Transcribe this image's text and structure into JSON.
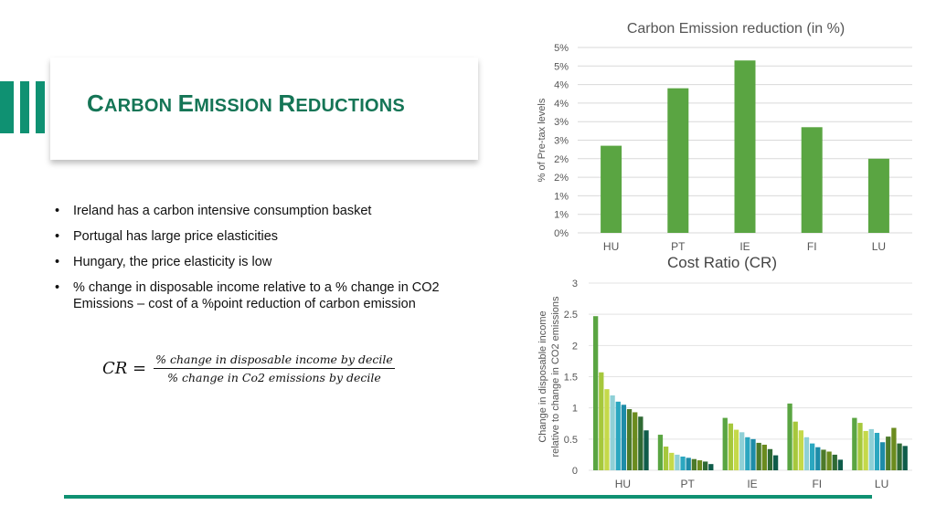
{
  "slide": {
    "title": "Carbon Emission Reductions",
    "bullets": [
      "Ireland has a carbon intensive consumption basket",
      "Portugal has large price elasticities",
      "Hungary, the price elasticity is low",
      "% change in disposable income relative to a % change in CO2 Emissions – cost of a %point reduction of carbon emission"
    ],
    "formula": {
      "lhs": "CR =",
      "numerator": "% change in disposable income by decile",
      "denominator": "% change in Co2 emissions by decile"
    }
  },
  "colors": {
    "accent": "#0f9172",
    "title": "#157556",
    "bar_top": "#5aa542",
    "decile_palette": [
      "#5aa542",
      "#a6c83c",
      "#c5d94a",
      "#8fd0d6",
      "#2ba7c0",
      "#1e8ca8",
      "#4d7a2a",
      "#6b8b1e",
      "#2f6a34",
      "#0f5c4a"
    ]
  },
  "chart_data": [
    {
      "type": "bar",
      "title": "Carbon Emission reduction (in %)",
      "xlabel": "",
      "ylabel": "% of Pre-tax levels",
      "categories": [
        "HU",
        "PT",
        "IE",
        "FI",
        "LU"
      ],
      "values": [
        2.35,
        3.9,
        4.65,
        2.85,
        2.0
      ],
      "ylim": [
        0,
        5
      ],
      "yticks": [
        0,
        0.5,
        1.0,
        1.5,
        2.0,
        2.5,
        3.0,
        3.5,
        4.0,
        4.5,
        5.0
      ],
      "yticklabels": [
        "0%",
        "1%",
        "1%",
        "2%",
        "2%",
        "3%",
        "3%",
        "4%",
        "4%",
        "5%",
        "5%"
      ],
      "grid": true,
      "legend": "none"
    },
    {
      "type": "bar",
      "title": "Cost Ratio (CR)",
      "xlabel": "",
      "ylabel": "Change in  disposable income relative to change in  CO2 emissions",
      "categories": [
        "HU",
        "PT",
        "IE",
        "FI",
        "LU"
      ],
      "series_note": "10 deciles per country",
      "values": [
        [
          2.47,
          1.57,
          1.3,
          1.2,
          1.1,
          1.05,
          0.98,
          0.93,
          0.86,
          0.64
        ],
        [
          0.57,
          0.38,
          0.28,
          0.25,
          0.22,
          0.2,
          0.18,
          0.16,
          0.14,
          0.1
        ],
        [
          0.84,
          0.75,
          0.65,
          0.61,
          0.53,
          0.5,
          0.44,
          0.41,
          0.34,
          0.24
        ],
        [
          1.07,
          0.78,
          0.64,
          0.53,
          0.43,
          0.37,
          0.33,
          0.3,
          0.25,
          0.17
        ],
        [
          0.84,
          0.76,
          0.63,
          0.66,
          0.6,
          0.45,
          0.54,
          0.68,
          0.43,
          0.39
        ]
      ],
      "ylim": [
        0,
        3
      ],
      "yticks": [
        0,
        0.5,
        1,
        1.5,
        2,
        2.5,
        3
      ],
      "yticklabels": [
        "0",
        "0.5",
        "1",
        "1.5",
        "2",
        "2.5",
        "3"
      ],
      "grid": true,
      "legend": "none"
    }
  ]
}
